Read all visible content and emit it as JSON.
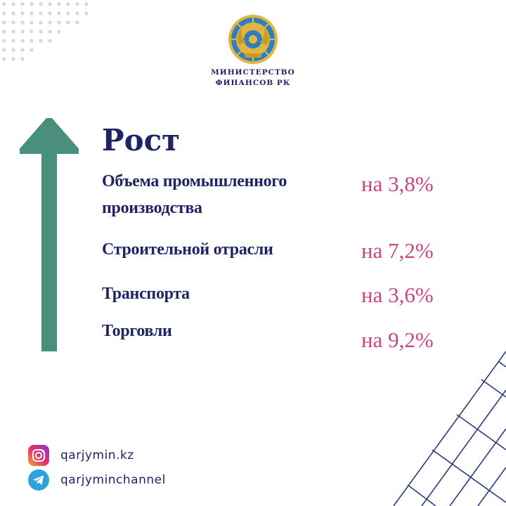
{
  "header": {
    "ministry_line1": "МИНИСТЕРСТВО",
    "ministry_line2": "ФИНАНСОВ РК"
  },
  "colors": {
    "navy": "#1f2466",
    "accent_pink": "#c8457f",
    "arrow_teal": "#4a8f7e",
    "grid_blue": "#2b3a7a",
    "dots": "#d6d6de"
  },
  "main": {
    "title": "Рост",
    "rows": [
      {
        "label_line1": "Объема промышленного",
        "label_line2": "производства",
        "value": "на 3,8%"
      },
      {
        "label_line1": "Строительной отрасли",
        "value": "на 7,2%"
      },
      {
        "label_line1": "Транспорта",
        "value": "на 3,6%"
      },
      {
        "label_line1": "Торговли",
        "value": "на 9,2%"
      }
    ]
  },
  "footer": {
    "social": [
      {
        "icon": "instagram-icon",
        "handle": "qarjymin.kz"
      },
      {
        "icon": "telegram-icon",
        "handle": "qarjyminchannel"
      }
    ]
  }
}
